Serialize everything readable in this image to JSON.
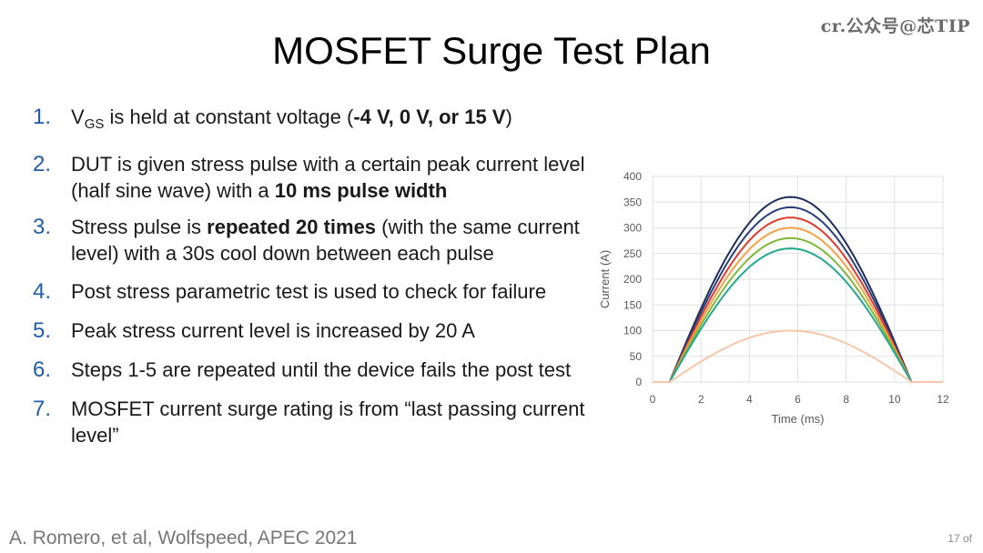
{
  "watermark": "cr.公众号@芯TIP",
  "title": "MOSFET Surge Test Plan",
  "list": {
    "nums": [
      "1.",
      "2.",
      "3.",
      "4.",
      "5.",
      "6.",
      "7."
    ],
    "item1": {
      "a": "V",
      "sub": "GS",
      "b": " is held at constant voltage (",
      "c": "-4 V, 0 V, or 15 V",
      "d": ")"
    },
    "item2": {
      "a": "DUT is given stress pulse with a certain peak current level (half sine wave) with a ",
      "b": "10 ms pulse width"
    },
    "item3": {
      "a": "Stress pulse is ",
      "b": "repeated 20 times",
      "c": " (with the same current level) with a 30s cool down between each pulse"
    },
    "item4": "Post stress parametric test is used to check for failure",
    "item5": "Peak stress current level is increased by 20 A",
    "item6": "Steps 1-5 are repeated until the device fails the post test",
    "item7": "MOSFET current surge rating is from “last passing current level”"
  },
  "citation": "A. Romero, et al, Wolfspeed, APEC 2021",
  "page_number": "17 of",
  "chart_data": {
    "type": "line",
    "xlabel": "Time (ms)",
    "ylabel": "Current (A)",
    "xlim": [
      0,
      12
    ],
    "ylim": [
      0,
      400
    ],
    "xticks": [
      0,
      2,
      4,
      6,
      8,
      10,
      12
    ],
    "yticks": [
      0,
      50,
      100,
      150,
      200,
      250,
      300,
      350,
      400
    ],
    "grid": true,
    "pulse": {
      "start_ms": 0.7,
      "end_ms": 10.7,
      "tail_end_ms": 12
    },
    "series": [
      {
        "peak": 360,
        "color": "#1f2f5c"
      },
      {
        "peak": 340,
        "color": "#2b3f7e"
      },
      {
        "peak": 320,
        "color": "#e03b2e"
      },
      {
        "peak": 300,
        "color": "#f4a143"
      },
      {
        "peak": 280,
        "color": "#7fb83a"
      },
      {
        "peak": 260,
        "color": "#24a88f"
      },
      {
        "peak": 100,
        "color": "#f8c6a8"
      }
    ]
  }
}
